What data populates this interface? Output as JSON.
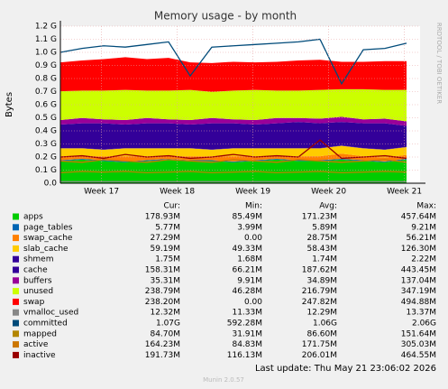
{
  "chart_data": {
    "type": "area",
    "title": "Memory usage - by month",
    "y_label": "Bytes",
    "side_text": "RRDTOOL / TOBI OETIKER",
    "x": [
      0,
      2,
      4,
      6,
      8,
      10,
      12,
      14,
      16,
      18,
      20,
      22,
      24,
      26,
      28,
      30,
      32
    ],
    "xlim": [
      0,
      33.25
    ],
    "xticks": [
      {
        "value": 3.8,
        "label": "Week 17"
      },
      {
        "value": 10.8,
        "label": "Week 18"
      },
      {
        "value": 17.8,
        "label": "Week 19"
      },
      {
        "value": 24.8,
        "label": "Week 20"
      },
      {
        "value": 31.8,
        "label": "Week 21"
      }
    ],
    "ylim": [
      0,
      1.2
    ],
    "yticks": [
      {
        "value": 0,
        "label": "0.0"
      },
      {
        "value": 0.1,
        "label": "0.1 G"
      },
      {
        "value": 0.2,
        "label": "0.2 G"
      },
      {
        "value": 0.3,
        "label": "0.3 G"
      },
      {
        "value": 0.4,
        "label": "0.4 G"
      },
      {
        "value": 0.5,
        "label": "0.5 G"
      },
      {
        "value": 0.6,
        "label": "0.6 G"
      },
      {
        "value": 0.7,
        "label": "0.7 G"
      },
      {
        "value": 0.8,
        "label": "0.8 G"
      },
      {
        "value": 0.9,
        "label": "0.9 G"
      },
      {
        "value": 1.0,
        "label": "1.0 G"
      },
      {
        "value": 1.1,
        "label": "1.1 G"
      },
      {
        "value": 1.2,
        "label": "1.2 G"
      }
    ],
    "grid": true,
    "columns": [
      "Cur:",
      "Min:",
      "Avg:",
      "Max:"
    ],
    "series": [
      {
        "name": "apps",
        "color": "#00cc00",
        "style": "stack",
        "stats": [
          "178.93M",
          "85.49M",
          "171.23M",
          "457.64M"
        ],
        "values": [
          0.17,
          0.18,
          0.17,
          0.16,
          0.17,
          0.18,
          0.17,
          0.17,
          0.16,
          0.17,
          0.18,
          0.17,
          0.17,
          0.18,
          0.17,
          0.16,
          0.18
        ]
      },
      {
        "name": "page_tables",
        "color": "#0066b3",
        "style": "stack",
        "stats": [
          "5.77M",
          "3.99M",
          "5.89M",
          "9.21M"
        ],
        "values": [
          0.006,
          0.006,
          0.006,
          0.006,
          0.006,
          0.006,
          0.006,
          0.006,
          0.006,
          0.006,
          0.006,
          0.006,
          0.006,
          0.006,
          0.006,
          0.006,
          0.006
        ]
      },
      {
        "name": "swap_cache",
        "color": "#ff8000",
        "style": "stack",
        "stats": [
          "27.29M",
          "0.00",
          "28.75M",
          "56.21M"
        ],
        "values": [
          0.03,
          0.02,
          0.03,
          0.04,
          0.03,
          0.02,
          0.03,
          0.03,
          0.04,
          0.03,
          0.02,
          0.03,
          0.03,
          0.04,
          0.03,
          0.03,
          0.03
        ]
      },
      {
        "name": "slab_cache",
        "color": "#ffcc00",
        "style": "stack",
        "stats": [
          "59.19M",
          "49.33M",
          "58.43M",
          "126.30M"
        ],
        "values": [
          0.06,
          0.06,
          0.05,
          0.06,
          0.06,
          0.06,
          0.06,
          0.05,
          0.06,
          0.06,
          0.06,
          0.06,
          0.06,
          0.06,
          0.06,
          0.06,
          0.06
        ]
      },
      {
        "name": "shmem",
        "color": "#330099",
        "style": "stack",
        "stats": [
          "1.75M",
          "1.68M",
          "1.74M",
          "2.22M"
        ],
        "values": [
          0.002,
          0.002,
          0.002,
          0.002,
          0.002,
          0.002,
          0.002,
          0.002,
          0.002,
          0.002,
          0.002,
          0.002,
          0.002,
          0.002,
          0.002,
          0.002,
          0.002
        ]
      },
      {
        "name": "cache",
        "color": "#330099",
        "style": "stack",
        "stats": [
          "158.31M",
          "66.21M",
          "187.62M",
          "443.45M"
        ],
        "values": [
          0.18,
          0.19,
          0.2,
          0.18,
          0.19,
          0.19,
          0.18,
          0.2,
          0.19,
          0.18,
          0.19,
          0.2,
          0.19,
          0.18,
          0.19,
          0.2,
          0.16
        ]
      },
      {
        "name": "buffers",
        "color": "#990099",
        "style": "stack",
        "stats": [
          "35.31M",
          "9.91M",
          "34.89M",
          "137.04M"
        ],
        "values": [
          0.035,
          0.04,
          0.03,
          0.035,
          0.04,
          0.03,
          0.035,
          0.04,
          0.03,
          0.035,
          0.04,
          0.03,
          0.035,
          0.04,
          0.03,
          0.035,
          0.035
        ]
      },
      {
        "name": "unused",
        "color": "#ccff00",
        "style": "stack",
        "stats": [
          "238.79M",
          "46.28M",
          "216.79M",
          "347.19M"
        ],
        "values": [
          0.22,
          0.21,
          0.22,
          0.23,
          0.21,
          0.22,
          0.23,
          0.2,
          0.22,
          0.23,
          0.21,
          0.21,
          0.22,
          0.21,
          0.23,
          0.22,
          0.24
        ]
      },
      {
        "name": "swap",
        "color": "#ff0000",
        "style": "stack",
        "stats": [
          "238.20M",
          "0.00",
          "247.82M",
          "494.88M"
        ],
        "values": [
          0.22,
          0.23,
          0.24,
          0.25,
          0.24,
          0.25,
          0.21,
          0.22,
          0.22,
          0.21,
          0.22,
          0.23,
          0.23,
          0.21,
          0.21,
          0.22,
          0.22
        ]
      },
      {
        "name": "vmalloc_used",
        "color": "#888888",
        "style": "line",
        "stats": [
          "12.32M",
          "11.33M",
          "12.29M",
          "13.37M"
        ],
        "values": [
          0.012,
          0.012,
          0.012,
          0.012,
          0.012,
          0.012,
          0.012,
          0.012,
          0.012,
          0.012,
          0.012,
          0.012,
          0.012,
          0.012,
          0.012,
          0.012,
          0.012
        ]
      },
      {
        "name": "committed",
        "color": "#004b7a",
        "style": "line",
        "stats": [
          "1.07G",
          "592.28M",
          "1.06G",
          "2.06G"
        ],
        "values": [
          1.0,
          1.03,
          1.05,
          1.04,
          1.06,
          1.08,
          0.82,
          1.04,
          1.05,
          1.06,
          1.07,
          1.08,
          1.1,
          0.76,
          1.02,
          1.03,
          1.07
        ]
      },
      {
        "name": "mapped",
        "color": "#b38600",
        "style": "line",
        "stats": [
          "84.70M",
          "31.91M",
          "86.60M",
          "151.64M"
        ],
        "values": [
          0.08,
          0.09,
          0.085,
          0.09,
          0.08,
          0.085,
          0.09,
          0.08,
          0.085,
          0.09,
          0.08,
          0.085,
          0.09,
          0.08,
          0.085,
          0.09,
          0.085
        ]
      },
      {
        "name": "active",
        "color": "#cc7700",
        "style": "line",
        "stats": [
          "164.23M",
          "84.83M",
          "171.75M",
          "305.03M"
        ],
        "values": [
          0.17,
          0.16,
          0.18,
          0.17,
          0.16,
          0.18,
          0.17,
          0.16,
          0.18,
          0.17,
          0.16,
          0.18,
          0.17,
          0.16,
          0.17,
          0.18,
          0.16
        ]
      },
      {
        "name": "inactive",
        "color": "#990000",
        "style": "line",
        "stats": [
          "191.73M",
          "116.13M",
          "206.01M",
          "464.55M"
        ],
        "values": [
          0.2,
          0.21,
          0.19,
          0.22,
          0.2,
          0.21,
          0.19,
          0.2,
          0.22,
          0.2,
          0.21,
          0.2,
          0.33,
          0.19,
          0.2,
          0.21,
          0.19
        ]
      }
    ],
    "last_update": "Last update: Thu May 21 23:06:02 2026",
    "footer": "Munin 2.0.57"
  }
}
